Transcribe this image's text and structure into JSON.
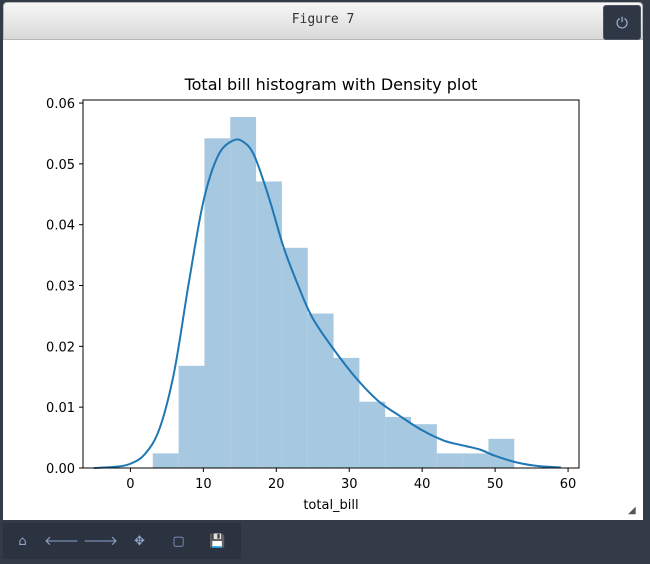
{
  "window": {
    "title": "Figure 7",
    "power_icon": "power-icon",
    "power_glyph": "⏻"
  },
  "toolbar": {
    "items": [
      {
        "name": "home-icon",
        "glyph": "⌂"
      },
      {
        "name": "back-icon",
        "glyph": "🡐"
      },
      {
        "name": "forward-icon",
        "glyph": "🡒"
      },
      {
        "name": "pan-icon",
        "glyph": "✥"
      },
      {
        "name": "zoom-rect-icon",
        "glyph": "▢"
      },
      {
        "name": "save-icon",
        "glyph": "💾"
      }
    ]
  },
  "chart_data": {
    "type": "bar",
    "title": "Total bill histogram with Density plot",
    "xlabel": "total_bill",
    "ylabel": "",
    "xlim": [
      -6.5,
      61.5
    ],
    "ylim": [
      0,
      0.0605
    ],
    "xticks": [
      0,
      10,
      20,
      30,
      40,
      50,
      60
    ],
    "yticks": [
      0.0,
      0.01,
      0.02,
      0.03,
      0.04,
      0.05,
      0.06
    ],
    "ytick_labels": [
      "0.00",
      "0.01",
      "0.02",
      "0.03",
      "0.04",
      "0.05",
      "0.06"
    ],
    "grid": false,
    "colors": {
      "bars": "#a6c8e0",
      "line": "#1f77b4",
      "axes": "#000000"
    },
    "histogram": {
      "bin_edges": [
        3.07,
        6.61,
        10.15,
        13.69,
        17.23,
        20.77,
        24.31,
        27.85,
        31.39,
        34.93,
        38.47,
        42.01,
        45.55,
        49.09,
        52.63
      ],
      "densities": [
        0.0024,
        0.0168,
        0.0542,
        0.0577,
        0.0471,
        0.0362,
        0.0254,
        0.0181,
        0.0109,
        0.0084,
        0.0072,
        0.0024,
        0.0024,
        0.0048
      ]
    },
    "density": {
      "x": [
        -5,
        -2,
        0,
        2,
        4,
        6,
        8,
        10,
        12,
        14,
        15.5,
        17,
        19,
        21,
        23,
        25,
        28,
        31,
        34,
        37,
        40,
        43,
        46,
        48,
        50,
        53,
        56,
        59
      ],
      "y": [
        0.0,
        0.0002,
        0.0007,
        0.0023,
        0.0065,
        0.0158,
        0.0304,
        0.0438,
        0.0513,
        0.0538,
        0.0536,
        0.0513,
        0.0444,
        0.0363,
        0.03,
        0.0246,
        0.0193,
        0.0147,
        0.011,
        0.0085,
        0.0062,
        0.0045,
        0.0036,
        0.003,
        0.002,
        0.0009,
        0.0003,
        0.0001
      ]
    }
  }
}
